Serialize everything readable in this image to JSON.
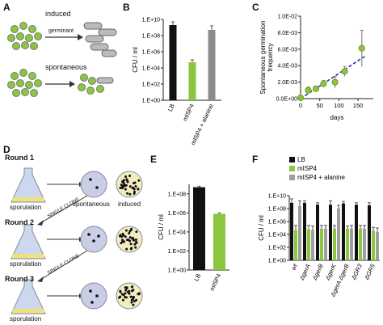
{
  "panels": {
    "A": {
      "letter": "A",
      "induced_label": "induced",
      "germinant_label": "germinant",
      "spontaneous_label": "spontaneous"
    },
    "B": {
      "letter": "B",
      "chart_data": {
        "type": "bar",
        "ylabel": "CFU / ml",
        "scale": "log",
        "yticks": [
          "1.E+00",
          "1.E+02",
          "1.E+04",
          "1.E+06",
          "1.E+08",
          "1.E+10"
        ],
        "ylim_log10": [
          0,
          10
        ],
        "categories": [
          "LB",
          "mISP4",
          "mISP4 + alanine"
        ],
        "values_log10": [
          9.3,
          4.7,
          8.7
        ],
        "error_log10": [
          0.4,
          0.3,
          0.5
        ],
        "colors": [
          "#111111",
          "#8cc63f",
          "#8c8c8c"
        ]
      }
    },
    "C": {
      "letter": "C",
      "chart_data": {
        "type": "scatter",
        "ylabel": "Spontaneous germination frequency",
        "xlabel": "days",
        "xticks": [
          "0",
          "50",
          "100",
          "150"
        ],
        "yticks": [
          "0.0E+00",
          "2.0E-03",
          "4.0E-03",
          "6.0E-03",
          "8.0E-03",
          "1.0E-02"
        ],
        "xlim": [
          0,
          190
        ],
        "ylim": [
          0,
          0.01
        ],
        "x": [
          0,
          20,
          40,
          60,
          90,
          115,
          160
        ],
        "y": [
          0.0001,
          0.001,
          0.0012,
          0.0018,
          0.002,
          0.0033,
          0.0061
        ],
        "yerr": [
          0.0001,
          0.0004,
          0.0003,
          0.0004,
          0.0007,
          0.0006,
          0.0022
        ],
        "fit_line": [
          [
            0,
            0.0
          ],
          [
            170,
            0.0052
          ]
        ],
        "point_color": "#8cc63f",
        "line_color": "#2233aa"
      }
    },
    "D": {
      "letter": "D",
      "rounds": [
        "Round 1",
        "Round 2",
        "Round 3"
      ],
      "sporulation_label": "sporulation",
      "spontaneous_label": "spontaneous",
      "induced_label": "induced",
      "single_clone_label": "SINGLE CLONE"
    },
    "E": {
      "letter": "E",
      "chart_data": {
        "type": "bar",
        "ylabel": "CFU / ml",
        "scale": "log",
        "yticks": [
          "1.E+00",
          "1.E+02",
          "1.E+04",
          "1.E+06",
          "1.E+08"
        ],
        "ylim_log10": [
          0,
          9
        ],
        "categories": [
          "LB",
          "mISP4"
        ],
        "values_log10": [
          8.7,
          5.9
        ],
        "error_log10": [
          0.1,
          0.1
        ],
        "colors": [
          "#111111",
          "#8cc63f"
        ]
      }
    },
    "F": {
      "letter": "F",
      "chart_data": {
        "type": "bar",
        "ylabel": "CFU / ml",
        "scale": "log",
        "yticks": [
          "1.E+00",
          "1.E+02",
          "1.E+04",
          "1.E+06",
          "1.E+08",
          "1.E+10"
        ],
        "ylim_log10": [
          0,
          10
        ],
        "categories": [
          "wt",
          "ΔgerA",
          "ΔgerB",
          "ΔgerK",
          "ΔgerA ΔgerB",
          "ΔGR3",
          "ΔGR5"
        ],
        "series": [
          {
            "name": "LB",
            "color": "#111111",
            "values_log10": [
              8.9,
              8.9,
              8.6,
              8.6,
              8.8,
              8.6,
              8.5
            ],
            "error_log10": [
              0.6,
              0.3,
              0.3,
              0.6,
              0.3,
              0.3,
              0.4
            ]
          },
          {
            "name": "mISP4",
            "color": "#8cc63f",
            "values_log10": [
              4.7,
              4.8,
              4.9,
              4.9,
              4.9,
              4.9,
              4.6
            ],
            "error_log10": [
              0.7,
              0.6,
              0.5,
              0.5,
              0.4,
              0.5,
              0.5
            ]
          },
          {
            "name": "mISP4 + alanine",
            "color": "#9e9e9e",
            "values_log10": [
              8.4,
              4.7,
              4.9,
              8.0,
              4.9,
              4.9,
              4.4
            ],
            "error_log10": [
              0.8,
              0.6,
              0.5,
              0.5,
              0.5,
              0.5,
              0.6
            ]
          }
        ]
      }
    }
  }
}
